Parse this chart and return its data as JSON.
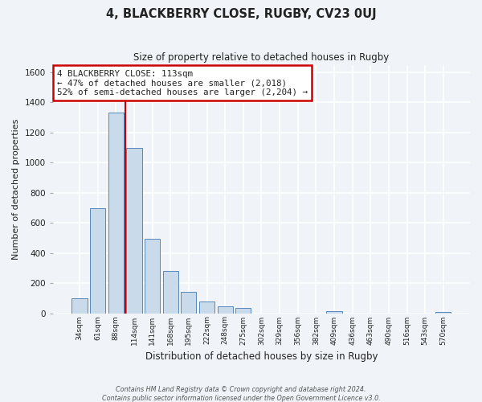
{
  "title": "4, BLACKBERRY CLOSE, RUGBY, CV23 0UJ",
  "subtitle": "Size of property relative to detached houses in Rugby",
  "xlabel": "Distribution of detached houses by size in Rugby",
  "ylabel": "Number of detached properties",
  "bar_labels": [
    "34sqm",
    "61sqm",
    "88sqm",
    "114sqm",
    "141sqm",
    "168sqm",
    "195sqm",
    "222sqm",
    "248sqm",
    "275sqm",
    "302sqm",
    "329sqm",
    "356sqm",
    "382sqm",
    "409sqm",
    "436sqm",
    "463sqm",
    "490sqm",
    "516sqm",
    "543sqm",
    "570sqm"
  ],
  "bar_values": [
    100,
    695,
    1330,
    1095,
    495,
    280,
    140,
    80,
    45,
    35,
    0,
    0,
    0,
    0,
    15,
    0,
    0,
    0,
    0,
    0,
    10
  ],
  "bar_color": "#c9daea",
  "bar_edge_color": "#5588bb",
  "vline_color": "#cc0000",
  "vline_pos": 2.5,
  "annotation_title": "4 BLACKBERRY CLOSE: 113sqm",
  "annotation_line1": "← 47% of detached houses are smaller (2,018)",
  "annotation_line2": "52% of semi-detached houses are larger (2,204) →",
  "annotation_box_color": "#ffffff",
  "annotation_box_edge": "#cc0000",
  "ylim": [
    0,
    1650
  ],
  "yticks": [
    0,
    200,
    400,
    600,
    800,
    1000,
    1200,
    1400,
    1600
  ],
  "footer1": "Contains HM Land Registry data © Crown copyright and database right 2024.",
  "footer2": "Contains public sector information licensed under the Open Government Licence v3.0.",
  "bg_color": "#f0f4f8",
  "plot_bg_color": "#f0f4f8",
  "grid_color": "#d8e0ea"
}
